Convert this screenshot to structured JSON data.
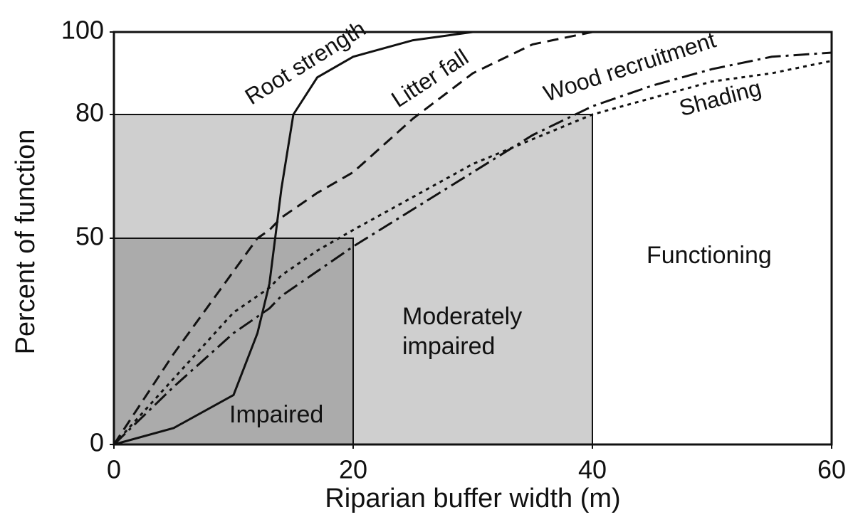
{
  "chart_data": {
    "type": "line",
    "xlabel": "Riparian buffer width (m)",
    "ylabel": "Percent of function",
    "xlim": [
      0,
      60
    ],
    "xticks": [
      0,
      20,
      40,
      60
    ],
    "ylim": [
      0,
      100
    ],
    "yticks": [
      0,
      50,
      80,
      100
    ],
    "regions": [
      {
        "label": "Functioning",
        "x": [
          0,
          60
        ],
        "y": [
          0,
          100
        ],
        "color": "#ffffff"
      },
      {
        "label": "Moderately impaired",
        "x": [
          0,
          40
        ],
        "y": [
          0,
          80
        ],
        "color": "#cfcfcf"
      },
      {
        "label": "Impaired",
        "x": [
          0,
          20
        ],
        "y": [
          0,
          50
        ],
        "color": "#ababab"
      }
    ],
    "x": [
      0,
      5,
      10,
      12,
      13,
      14,
      15,
      17,
      20,
      25,
      30,
      35,
      40,
      45,
      50,
      55,
      60
    ],
    "series": [
      {
        "name": "Root strength",
        "color": "#111111",
        "linestyle": "solid",
        "values": [
          0,
          4,
          12,
          27,
          39,
          62,
          80,
          89,
          94,
          98,
          100,
          100,
          100,
          100,
          100,
          100,
          100
        ]
      },
      {
        "name": "Litter fall",
        "color": "#111111",
        "linestyle": "dashed",
        "values": [
          0,
          22,
          42,
          50,
          52,
          55,
          57,
          61,
          66,
          79,
          90,
          97,
          100,
          100,
          100,
          100,
          100
        ]
      },
      {
        "name": "Wood recruitment",
        "color": "#111111",
        "linestyle": "dashdot",
        "values": [
          0,
          14,
          27,
          31,
          33,
          36,
          38,
          42,
          48,
          57,
          66,
          75,
          82,
          87,
          91,
          94,
          95
        ]
      },
      {
        "name": "Shading",
        "color": "#111111",
        "linestyle": "dotted",
        "values": [
          0,
          16,
          32,
          36,
          38,
          41,
          43,
          47,
          52,
          60,
          68,
          74,
          80,
          84,
          88,
          90,
          93
        ]
      }
    ]
  }
}
